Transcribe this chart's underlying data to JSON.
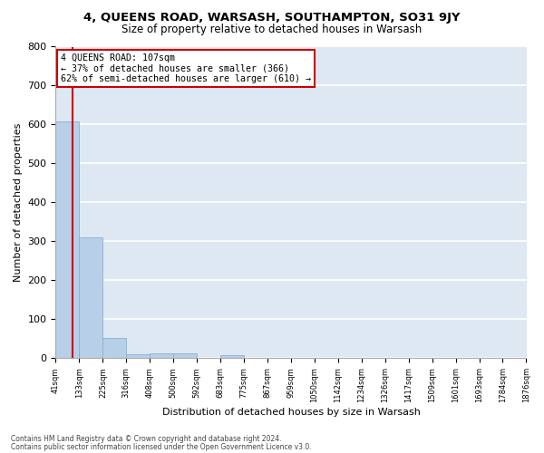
{
  "title1": "4, QUEENS ROAD, WARSASH, SOUTHAMPTON, SO31 9JY",
  "title2": "Size of property relative to detached houses in Warsash",
  "xlabel": "Distribution of detached houses by size in Warsash",
  "ylabel": "Number of detached properties",
  "annotation_title": "4 QUEENS ROAD: 107sqm",
  "annotation_line1": "← 37% of detached houses are smaller (366)",
  "annotation_line2": "62% of semi-detached houses are larger (610) →",
  "property_size": 107,
  "bin_edges": [
    41,
    133,
    225,
    316,
    408,
    500,
    592,
    683,
    775,
    867,
    959,
    1050,
    1142,
    1234,
    1326,
    1417,
    1509,
    1601,
    1693,
    1784,
    1876
  ],
  "bin_labels": [
    "41sqm",
    "133sqm",
    "225sqm",
    "316sqm",
    "408sqm",
    "500sqm",
    "592sqm",
    "683sqm",
    "775sqm",
    "867sqm",
    "959sqm",
    "1050sqm",
    "1142sqm",
    "1234sqm",
    "1326sqm",
    "1417sqm",
    "1509sqm",
    "1601sqm",
    "1693sqm",
    "1784sqm",
    "1876sqm"
  ],
  "counts": [
    609,
    311,
    52,
    11,
    13,
    13,
    0,
    8,
    0,
    0,
    0,
    0,
    0,
    0,
    0,
    0,
    0,
    0,
    0,
    0
  ],
  "bar_color": "#b8cfe8",
  "bar_edge_color": "#8aafd4",
  "vline_color": "#cc0000",
  "background_color": "#dde8f3",
  "grid_color": "#ffffff",
  "annotation_box_color": "#ffffff",
  "annotation_box_edgecolor": "#cc0000",
  "footer_line1": "Contains HM Land Registry data © Crown copyright and database right 2024.",
  "footer_line2": "Contains public sector information licensed under the Open Government Licence v3.0.",
  "ylim": [
    0,
    800
  ],
  "yticks": [
    0,
    100,
    200,
    300,
    400,
    500,
    600,
    700,
    800
  ],
  "title1_fontsize": 9.5,
  "title2_fontsize": 8.5
}
